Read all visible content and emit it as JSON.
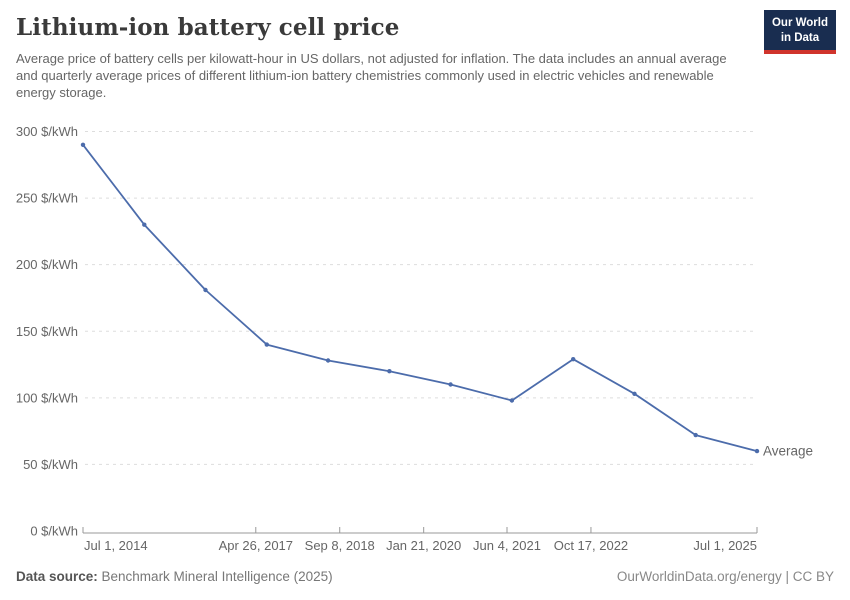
{
  "header": {
    "title": "Lithium-ion battery cell price",
    "subtitle": "Average price of battery cells per kilowatt-hour in US dollars, not adjusted for inflation. The data includes an annual average and quarterly average prices of different lithium-ion battery chemistries commonly used in electric vehicles and renewable energy storage.",
    "logo": {
      "line1": "Our World",
      "line2": "in Data"
    }
  },
  "chart_data": {
    "type": "line",
    "title": "Lithium-ion battery cell price",
    "unit": "$/kWh",
    "ylim": [
      0,
      300
    ],
    "y_ticks": [
      0,
      50,
      100,
      150,
      200,
      250,
      300
    ],
    "y_tick_suffix": " $/kWh",
    "grid": true,
    "legend_position": "end-of-line label",
    "x_domain": [
      2014.5,
      2025.5
    ],
    "x_ticks": [
      {
        "label": "Jul 1, 2014",
        "t": 2014.5,
        "align": "start"
      },
      {
        "label": "Apr 26, 2017",
        "t": 2017.32,
        "align": "middle"
      },
      {
        "label": "Sep 8, 2018",
        "t": 2018.69,
        "align": "middle"
      },
      {
        "label": "Jan 21, 2020",
        "t": 2020.06,
        "align": "middle"
      },
      {
        "label": "Jun 4, 2021",
        "t": 2021.42,
        "align": "middle"
      },
      {
        "label": "Oct 17, 2022",
        "t": 2022.79,
        "align": "middle"
      },
      {
        "label": "Jul 1, 2025",
        "t": 2025.5,
        "align": "end"
      }
    ],
    "series": [
      {
        "name": "Average",
        "color": "#4c6cab",
        "x": [
          2014.5,
          2015.5,
          2016.5,
          2017.5,
          2018.5,
          2019.5,
          2020.5,
          2021.5,
          2022.5,
          2023.5,
          2024.5,
          2025.5
        ],
        "values": [
          290,
          230,
          181,
          140,
          128,
          120,
          110,
          98,
          129,
          103,
          72,
          60
        ]
      }
    ]
  },
  "colors": {
    "line": "#4c6cab",
    "grid": "#dddddd",
    "axis": "#999999",
    "tick_label": "#666666",
    "logo_bg": "#192d50",
    "logo_accent": "#d0342c"
  },
  "footer": {
    "source_label": "Data source:",
    "source_value": " Benchmark Mineral Intelligence (2025)",
    "attribution": "OurWorldinData.org/energy | CC BY"
  }
}
